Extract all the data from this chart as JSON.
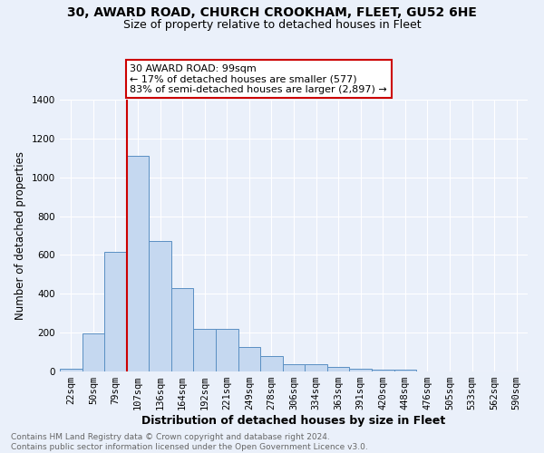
{
  "title1": "30, AWARD ROAD, CHURCH CROOKHAM, FLEET, GU52 6HE",
  "title2": "Size of property relative to detached houses in Fleet",
  "xlabel": "Distribution of detached houses by size in Fleet",
  "ylabel": "Number of detached properties",
  "categories": [
    "22sqm",
    "50sqm",
    "79sqm",
    "107sqm",
    "136sqm",
    "164sqm",
    "192sqm",
    "221sqm",
    "249sqm",
    "278sqm",
    "306sqm",
    "334sqm",
    "363sqm",
    "391sqm",
    "420sqm",
    "448sqm",
    "476sqm",
    "505sqm",
    "533sqm",
    "562sqm",
    "590sqm"
  ],
  "values": [
    15,
    195,
    615,
    1110,
    670,
    430,
    218,
    218,
    128,
    80,
    38,
    38,
    22,
    15,
    8,
    8,
    0,
    0,
    0,
    0,
    0
  ],
  "bar_color": "#c5d8f0",
  "bar_edge_color": "#5a8fc3",
  "annotation_text": "30 AWARD ROAD: 99sqm\n← 17% of detached houses are smaller (577)\n83% of semi-detached houses are larger (2,897) →",
  "annotation_box_color": "#ffffff",
  "annotation_edge_color": "#cc0000",
  "vline_color": "#cc0000",
  "vline_x": 2.5,
  "ylim": [
    0,
    1400
  ],
  "yticks": [
    0,
    200,
    400,
    600,
    800,
    1000,
    1200,
    1400
  ],
  "footer": "Contains HM Land Registry data © Crown copyright and database right 2024.\nContains public sector information licensed under the Open Government Licence v3.0.",
  "bg_color": "#eaf0fa",
  "grid_color": "#ffffff",
  "title1_fontsize": 10,
  "title2_fontsize": 9,
  "xlabel_fontsize": 9,
  "ylabel_fontsize": 8.5,
  "tick_fontsize": 7.5,
  "footer_fontsize": 6.5,
  "footer_color": "#666666",
  "annot_fontsize": 8
}
